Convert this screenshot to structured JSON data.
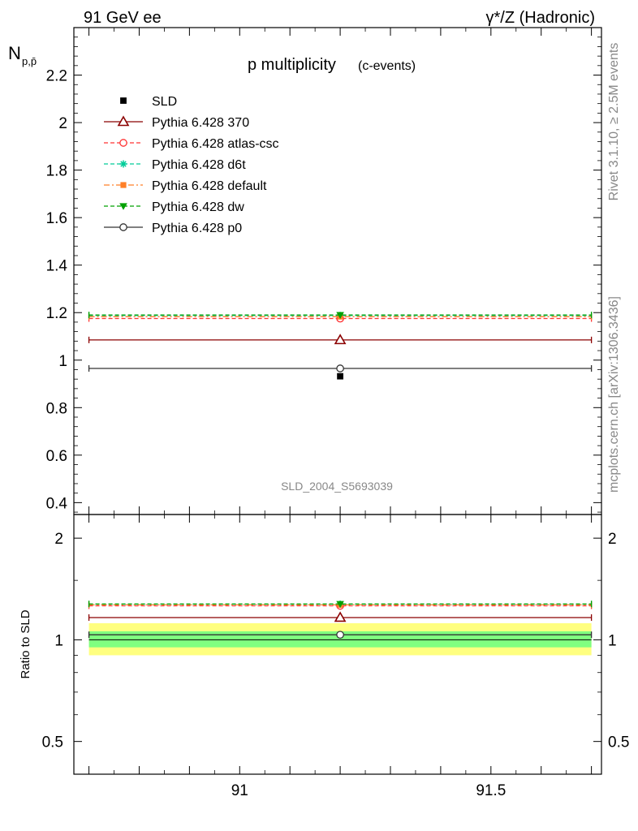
{
  "header": {
    "left": "91 GeV ee",
    "right": "γ*/Z (Hadronic)"
  },
  "side_labels": {
    "rivet": "Rivet 3.1.10, ≥ 2.5M events",
    "mcplots": "mcplots.cern.ch [arXiv:1306.3436]"
  },
  "chart_data": [
    {
      "type": "line",
      "panel": "main",
      "title": "p multiplicity",
      "title_suffix": "(c-events)",
      "ylabel": "N",
      "ylabel_sub": "p,p̄",
      "watermark": "SLD_2004_S5693039",
      "xlim": [
        90.67,
        91.72
      ],
      "ylim": [
        0.35,
        2.4
      ],
      "yticks": [
        0.4,
        0.6,
        0.8,
        1,
        1.2,
        1.4,
        1.6,
        1.8,
        2,
        2.2
      ],
      "ytick_labels": [
        "0.4",
        "0.6",
        "0.8",
        "1",
        "1.2",
        "1.4",
        "1.6",
        "1.8",
        "2",
        "2.2"
      ],
      "legend_position": "top-left",
      "data": {
        "name": "SLD",
        "x": 91.2,
        "y": 0.932,
        "color": "#000000"
      },
      "series": [
        {
          "name": "Pythia 6.428 370",
          "x": 91.2,
          "y": 1.085,
          "xrange": [
            90.7,
            91.7
          ],
          "color": "#8b0000",
          "dash": "solid",
          "marker": "triangle-open"
        },
        {
          "name": "Pythia 6.428 atlas-csc",
          "x": 91.2,
          "y": 1.175,
          "xrange": [
            90.7,
            91.7
          ],
          "color": "#ff3333",
          "dash": "dashed",
          "marker": "circle-open"
        },
        {
          "name": "Pythia 6.428 d6t",
          "x": 91.2,
          "y": 1.188,
          "xrange": [
            90.7,
            91.7
          ],
          "color": "#00cc99",
          "dash": "dashed",
          "marker": "star"
        },
        {
          "name": "Pythia 6.428 default",
          "x": 91.2,
          "y": 1.183,
          "xrange": [
            90.7,
            91.7
          ],
          "color": "#ff7f27",
          "dash": "dashdot",
          "marker": "square"
        },
        {
          "name": "Pythia 6.428 dw",
          "x": 91.2,
          "y": 1.19,
          "xrange": [
            90.7,
            91.7
          ],
          "color": "#00a000",
          "dash": "dashed",
          "marker": "triangle-down"
        },
        {
          "name": "Pythia 6.428 p0",
          "x": 91.2,
          "y": 0.965,
          "xrange": [
            90.7,
            91.7
          ],
          "color": "#333333",
          "dash": "solid",
          "marker": "circle-open"
        }
      ]
    },
    {
      "type": "line",
      "panel": "ratio",
      "ylabel": "Ratio to SLD",
      "scale": "log",
      "xlim": [
        90.67,
        91.72
      ],
      "ylim": [
        0.4,
        2.35
      ],
      "yticks": [
        0.5,
        1,
        2
      ],
      "ytick_labels": [
        "0.5",
        "1",
        "2"
      ],
      "xticks": [
        91,
        91.5
      ],
      "xtick_labels": [
        "91",
        "91.5"
      ],
      "bands": [
        {
          "lo": 0.9,
          "hi": 1.12,
          "color": "#ffff80"
        },
        {
          "lo": 0.95,
          "hi": 1.06,
          "color": "#80ff80"
        }
      ],
      "series": [
        {
          "name": "Pythia 6.428 370",
          "y": 1.164,
          "color": "#8b0000",
          "dash": "solid",
          "marker": "triangle-open"
        },
        {
          "name": "Pythia 6.428 atlas-csc",
          "y": 1.261,
          "color": "#ff3333",
          "dash": "dashed",
          "marker": "circle-open"
        },
        {
          "name": "Pythia 6.428 d6t",
          "y": 1.275,
          "color": "#00cc99",
          "dash": "dashed",
          "marker": "star"
        },
        {
          "name": "Pythia 6.428 default",
          "y": 1.27,
          "color": "#ff7f27",
          "dash": "dashdot",
          "marker": "square"
        },
        {
          "name": "Pythia 6.428 dw",
          "y": 1.277,
          "color": "#00a000",
          "dash": "dashed",
          "marker": "triangle-down"
        },
        {
          "name": "Pythia 6.428 p0",
          "y": 1.035,
          "color": "#333333",
          "dash": "solid",
          "marker": "circle-open"
        }
      ]
    }
  ]
}
